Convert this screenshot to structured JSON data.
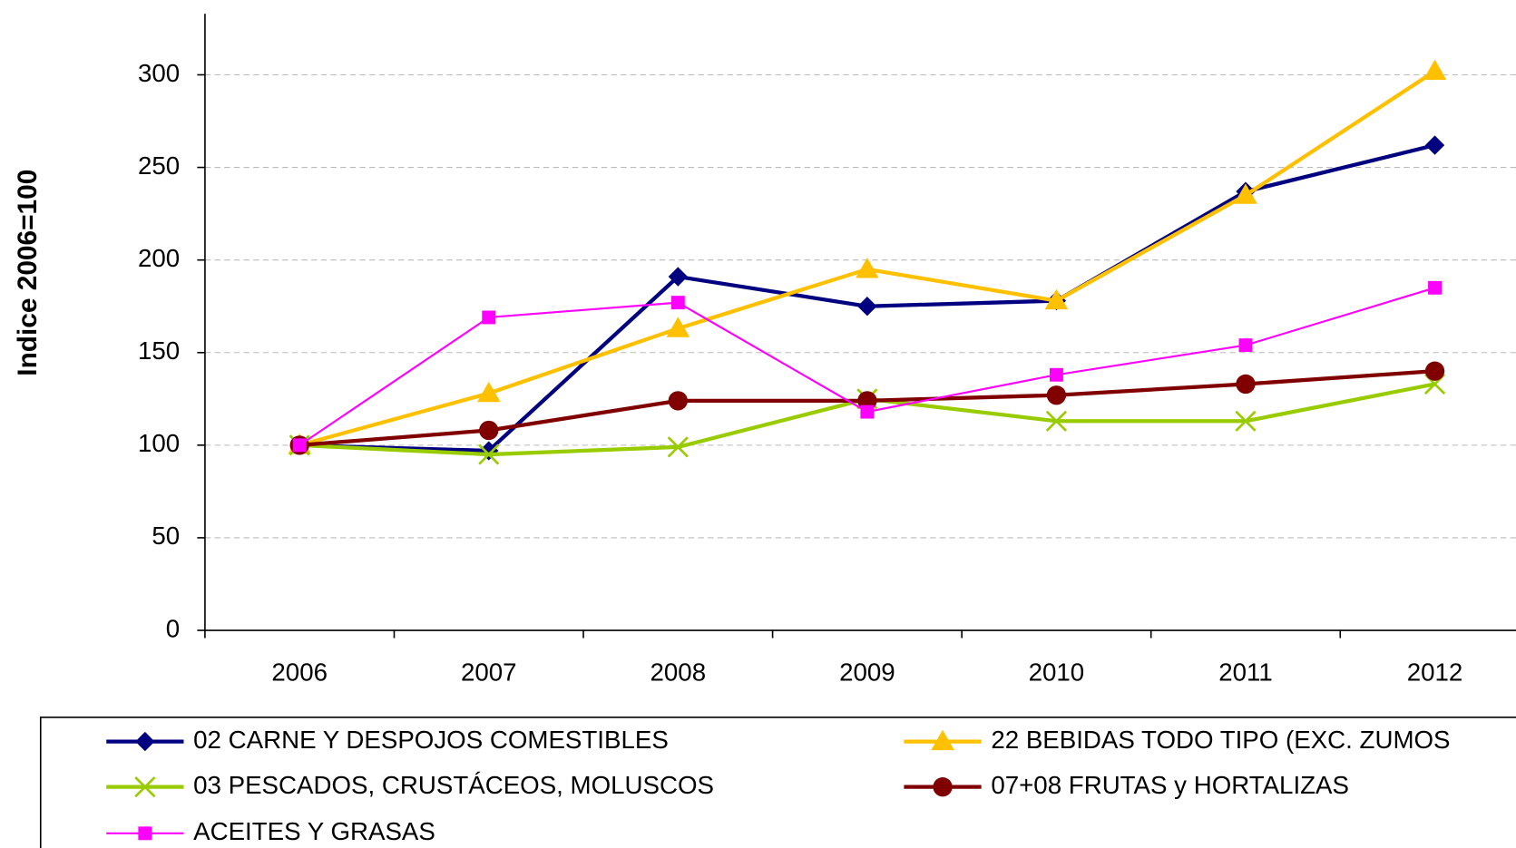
{
  "chart_data": {
    "type": "line",
    "y_label": "Indice 2006=100",
    "categories": [
      "2006",
      "2007",
      "2008",
      "2009",
      "2010",
      "2011",
      "2012"
    ],
    "series": [
      {
        "name": "02 CARNE Y DESPOJOS COMESTIBLES",
        "color": "#000080",
        "marker": "diamond",
        "values": [
          100,
          97,
          191,
          175,
          178,
          237,
          262
        ]
      },
      {
        "name": "22 BEBIDAS TODO TIPO (EXC. ZUMOS",
        "color": "#FFC000",
        "marker": "triangle",
        "values": [
          100,
          128,
          163,
          195,
          178,
          235,
          302
        ]
      },
      {
        "name": "03 PESCADOS, CRUSTÁCEOS, MOLUSCOS",
        "color": "#99CC00",
        "marker": "x",
        "values": [
          100,
          95,
          99,
          125,
          113,
          113,
          133
        ]
      },
      {
        "name": "07+08 FRUTAS y HORTALIZAS",
        "color": "#800000",
        "marker": "circle",
        "values": [
          100,
          108,
          124,
          124,
          127,
          133,
          140
        ]
      },
      {
        "name": "ACEITES Y GRASAS",
        "color": "#FF00FF",
        "marker": "square",
        "values": [
          100,
          169,
          177,
          118,
          138,
          154,
          185
        ]
      }
    ],
    "ylim": [
      0,
      333
    ],
    "yticks": [
      0,
      50,
      100,
      150,
      200,
      250,
      300
    ],
    "grid": true
  }
}
